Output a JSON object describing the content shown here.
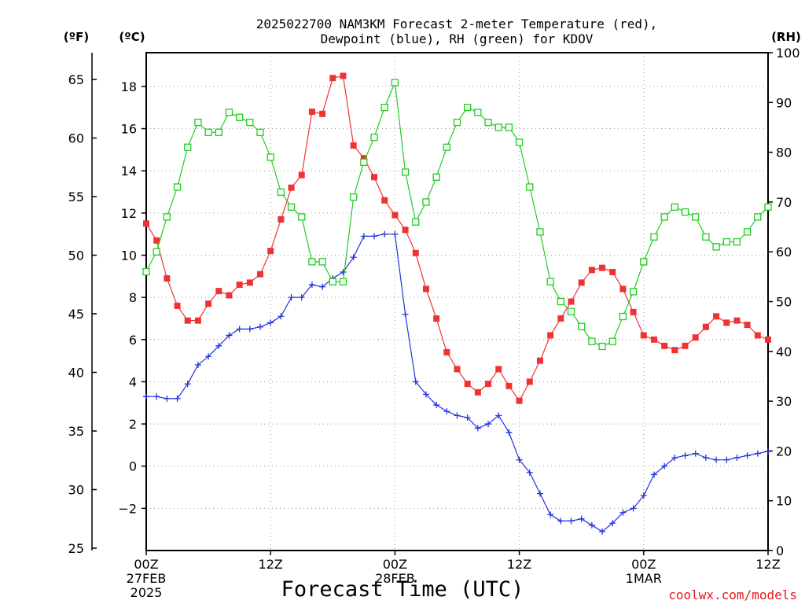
{
  "chart_data": {
    "type": "line",
    "title_lines": [
      "2025022700 NAM3KM Forecast 2-meter Temperature (red),",
      "Dewpoint (blue), RH (green) for KDOV"
    ],
    "xlabel": "Forecast Time (UTC)",
    "credit": "coolwx.com/models",
    "left_units_f": "(ºF)",
    "left_units_c": "(ºC)",
    "right_units": "(RH)",
    "x_range_hours": [
      0,
      60
    ],
    "x_ticks": [
      {
        "hour": 0,
        "lines": [
          "00Z",
          "27FEB",
          "2025"
        ]
      },
      {
        "hour": 12,
        "lines": [
          "12Z"
        ]
      },
      {
        "hour": 24,
        "lines": [
          "00Z",
          "28FEB"
        ]
      },
      {
        "hour": 36,
        "lines": [
          "12Z"
        ]
      },
      {
        "hour": 48,
        "lines": [
          "00Z",
          "1MAR"
        ]
      },
      {
        "hour": 60,
        "lines": [
          "12Z"
        ]
      }
    ],
    "c_range": [
      -4,
      19.6
    ],
    "c_ticks": [
      -2,
      0,
      2,
      4,
      6,
      8,
      10,
      12,
      14,
      16,
      18
    ],
    "f_ticks": [
      25,
      30,
      35,
      40,
      45,
      50,
      55,
      60,
      65
    ],
    "rh_range": [
      0,
      100
    ],
    "rh_ticks": [
      0,
      10,
      20,
      30,
      40,
      50,
      60,
      70,
      80,
      90,
      100
    ],
    "grid": true,
    "series": [
      {
        "name": "2-meter Temperature",
        "unit": "C",
        "color": "#ee3333",
        "marker": "filled-square",
        "values": [
          11.5,
          10.7,
          8.9,
          7.6,
          6.9,
          6.9,
          7.7,
          8.3,
          8.1,
          8.6,
          8.7,
          9.1,
          10.2,
          11.7,
          13.2,
          13.8,
          16.8,
          16.7,
          18.4,
          18.5,
          15.2,
          14.6,
          13.7,
          12.6,
          11.9,
          11.2,
          10.1,
          8.4,
          7.0,
          5.4,
          4.6,
          3.9,
          3.5,
          3.9,
          4.6,
          3.8,
          3.1,
          4.0,
          5.0,
          6.2,
          7.0,
          7.8,
          8.7,
          9.3,
          9.4,
          9.2,
          8.4,
          7.3,
          6.2,
          6.0,
          5.7,
          5.5,
          5.7,
          6.1,
          6.6,
          7.1,
          6.8,
          6.9,
          6.7,
          6.2,
          6.0
        ]
      },
      {
        "name": "Dewpoint",
        "unit": "C",
        "color": "#2233dd",
        "marker": "plus",
        "values": [
          3.3,
          3.3,
          3.2,
          3.2,
          3.9,
          4.8,
          5.2,
          5.7,
          6.2,
          6.5,
          6.5,
          6.6,
          6.8,
          7.1,
          8.0,
          8.0,
          8.6,
          8.5,
          8.9,
          9.2,
          9.9,
          10.9,
          10.9,
          11.0,
          11.0,
          7.2,
          4.0,
          3.4,
          2.9,
          2.6,
          2.4,
          2.3,
          1.8,
          2.0,
          2.4,
          1.6,
          0.3,
          -0.3,
          -1.3,
          -2.3,
          -2.6,
          -2.6,
          -2.5,
          -2.8,
          -3.1,
          -2.7,
          -2.2,
          -2.0,
          -1.4,
          -0.4,
          0.0,
          0.4,
          0.5,
          0.6,
          0.4,
          0.3,
          0.3,
          0.4,
          0.5,
          0.6,
          0.7
        ]
      },
      {
        "name": "RH",
        "unit": "%",
        "color": "#22cc22",
        "marker": "open-square",
        "values": [
          56,
          60,
          67,
          73,
          81,
          86,
          84,
          84,
          88,
          87,
          86,
          84,
          79,
          72,
          69,
          67,
          58,
          58,
          54,
          54,
          71,
          78,
          83,
          89,
          94,
          76,
          66,
          70,
          75,
          81,
          86,
          89,
          88,
          86,
          85,
          85,
          82,
          73,
          64,
          54,
          50,
          48,
          45,
          42,
          41,
          42,
          47,
          52,
          58,
          63,
          67,
          69,
          68,
          67,
          63,
          61,
          62,
          62,
          64,
          67,
          69
        ]
      }
    ]
  }
}
